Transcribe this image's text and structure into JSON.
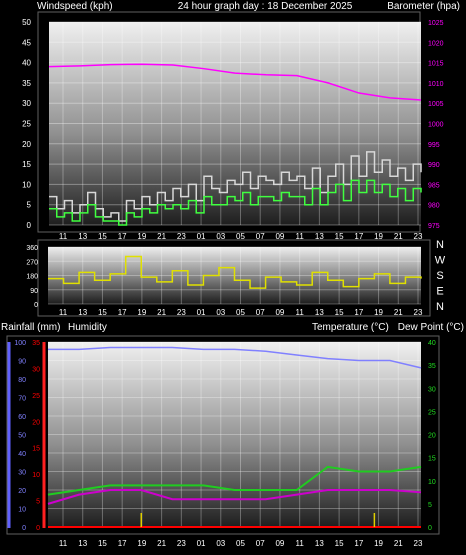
{
  "header": {
    "left": "Windspeed (kph)",
    "center": "24 hour graph day : 18 December 2025",
    "right": "Barometer (hpa)"
  },
  "mid_header": {
    "rain": "Rainfall (mm)",
    "humidity": "Humidity",
    "temperature": "Temperature (°C)",
    "dewpoint": "Dew Point (°C)"
  },
  "time_labels": [
    "11",
    "13",
    "15",
    "17",
    "19",
    "21",
    "23",
    "01",
    "03",
    "05",
    "07",
    "09",
    "11",
    "13",
    "15",
    "17",
    "19",
    "21",
    "23"
  ],
  "colors": {
    "wind_gust": "#d8d8d8",
    "wind_avg": "#40ff40",
    "pressure": "#ff00ff",
    "direction": "#e0e000",
    "humidity": "#8080ff",
    "temperature": "#20cc20",
    "dewpoint": "#cc00cc",
    "rain": "#ff0000",
    "rain_rate": "#e0d000"
  },
  "chart_data": [
    {
      "type": "line",
      "name": "wind-pressure",
      "x_ticks": [
        "11",
        "13",
        "15",
        "17",
        "19",
        "21",
        "23",
        "01",
        "03",
        "05",
        "07",
        "09",
        "11",
        "13",
        "15",
        "17",
        "19",
        "21",
        "23"
      ],
      "y_left": {
        "label": "Windspeed (kph)",
        "ticks": [
          "0",
          "5",
          "10",
          "15",
          "20",
          "25",
          "30",
          "35",
          "40",
          "45",
          "50"
        ],
        "ylim": [
          0,
          50
        ]
      },
      "y_right": {
        "label": "Barometer (hpa)",
        "ticks": [
          "975",
          "980",
          "985",
          "990",
          "995",
          "1000",
          "1005",
          "1010",
          "1015",
          "1020",
          "1025"
        ],
        "ylim": [
          975,
          1025
        ]
      },
      "series": [
        {
          "axis": "left",
          "x": [
            0,
            1,
            2,
            3,
            4,
            5,
            6,
            7,
            8,
            9,
            10,
            11,
            12,
            13,
            14,
            15,
            16,
            17,
            18,
            19,
            20,
            21,
            22,
            23,
            24,
            25,
            26,
            27,
            28,
            29,
            30,
            31,
            32,
            33,
            34,
            35,
            36,
            37,
            38,
            39,
            40,
            41,
            42,
            43,
            44,
            45,
            46,
            47,
            48
          ],
          "values": [
            7,
            4,
            6,
            3,
            5,
            8,
            4,
            2,
            3,
            1,
            6,
            4,
            7,
            5,
            8,
            6,
            9,
            7,
            10,
            6,
            12,
            9,
            8,
            11,
            10,
            13,
            9,
            12,
            11,
            10,
            13,
            11,
            12,
            9,
            14,
            8,
            12,
            15,
            10,
            17,
            12,
            18,
            13,
            16,
            12,
            14,
            11,
            15,
            13
          ]
        },
        {
          "axis": "left",
          "x": [
            0,
            1,
            2,
            3,
            4,
            5,
            6,
            7,
            8,
            9,
            10,
            11,
            12,
            13,
            14,
            15,
            16,
            17,
            18,
            19,
            20,
            21,
            22,
            23,
            24,
            25,
            26,
            27,
            28,
            29,
            30,
            31,
            32,
            33,
            34,
            35,
            36,
            37,
            38,
            39,
            40,
            41,
            42,
            43,
            44,
            45,
            46,
            47,
            48
          ],
          "values": [
            4,
            2,
            3,
            1,
            3,
            5,
            2,
            1,
            1,
            0,
            3,
            2,
            4,
            3,
            5,
            4,
            5,
            4,
            6,
            3,
            7,
            5,
            5,
            7,
            6,
            8,
            5,
            7,
            7,
            6,
            8,
            7,
            7,
            5,
            9,
            5,
            8,
            10,
            6,
            11,
            8,
            11,
            8,
            10,
            7,
            9,
            6,
            9,
            8
          ]
        },
        {
          "axis": "right",
          "x": [
            0,
            4,
            8,
            12,
            16,
            20,
            24,
            28,
            32,
            36,
            40,
            44,
            48
          ],
          "values": [
            1014,
            1014.2,
            1014.5,
            1014.6,
            1014.4,
            1013.5,
            1012.4,
            1012,
            1011.8,
            1010,
            1007.5,
            1006.3,
            1005.8
          ]
        }
      ]
    },
    {
      "type": "line",
      "name": "wind-direction",
      "x_ticks": [
        "11",
        "13",
        "15",
        "17",
        "19",
        "21",
        "23",
        "01",
        "03",
        "05",
        "07",
        "09",
        "11",
        "13",
        "15",
        "17",
        "19",
        "21",
        "23"
      ],
      "y_left": {
        "ticks": [
          "0",
          "90",
          "180",
          "270",
          "360"
        ],
        "ylim": [
          0,
          360
        ]
      },
      "y_right": {
        "ticks": [
          "N",
          "W",
          "S",
          "E",
          "N"
        ]
      },
      "series": [
        {
          "x": [
            0,
            2,
            4,
            6,
            8,
            10,
            12,
            14,
            16,
            18,
            20,
            22,
            24,
            26,
            28,
            30,
            32,
            34,
            36,
            38,
            40,
            42,
            44,
            46,
            48
          ],
          "values": [
            160,
            130,
            200,
            150,
            190,
            300,
            170,
            140,
            210,
            120,
            180,
            230,
            150,
            100,
            170,
            140,
            120,
            200,
            150,
            110,
            160,
            190,
            130,
            170,
            160
          ]
        }
      ]
    },
    {
      "type": "line",
      "name": "temperature-humidity-rain",
      "x_ticks": [
        "11",
        "13",
        "15",
        "17",
        "19",
        "21",
        "23",
        "01",
        "03",
        "05",
        "07",
        "09",
        "11",
        "13",
        "15",
        "17",
        "19",
        "21",
        "23"
      ],
      "y_left": {
        "label": "Humidity",
        "ticks": [
          "0",
          "10",
          "20",
          "30",
          "40",
          "50",
          "60",
          "70",
          "80",
          "90",
          "100"
        ],
        "ylim": [
          0,
          100
        ]
      },
      "y_rain": {
        "label": "Rainfall (mm)",
        "ticks": [
          "0",
          "5",
          "10",
          "15",
          "20",
          "25",
          "30",
          "35"
        ],
        "ylim": [
          0,
          35
        ]
      },
      "y_right": {
        "label": "Temperature (°C) Dew Point (°C)",
        "ticks": [
          "0",
          "5",
          "10",
          "15",
          "20",
          "25",
          "30",
          "35",
          "40"
        ],
        "ylim": [
          0,
          40
        ]
      },
      "series": [
        {
          "axis": "left",
          "x": [
            0,
            4,
            8,
            12,
            16,
            20,
            24,
            28,
            32,
            36,
            40,
            44,
            48
          ],
          "values": [
            96,
            96,
            97,
            97,
            97,
            96,
            96,
            95,
            93,
            91,
            90,
            90,
            86
          ]
        },
        {
          "axis": "right",
          "x": [
            0,
            4,
            8,
            12,
            16,
            20,
            24,
            28,
            32,
            36,
            40,
            44,
            48
          ],
          "values": [
            7,
            8,
            9,
            9,
            9,
            9,
            8,
            8,
            8,
            13,
            12,
            12,
            13
          ]
        },
        {
          "axis": "right",
          "x": [
            0,
            4,
            8,
            12,
            16,
            20,
            24,
            28,
            32,
            36,
            40,
            44,
            48
          ],
          "values": [
            5,
            7,
            8,
            8,
            6,
            6,
            6,
            6,
            7,
            8,
            8,
            8,
            7.5
          ]
        },
        {
          "axis": "rain",
          "x": [
            0,
            48
          ],
          "values": [
            0,
            0
          ]
        }
      ]
    }
  ]
}
